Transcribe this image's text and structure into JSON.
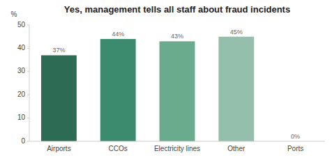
{
  "chart_data": {
    "type": "bar",
    "title": "Yes, management tells all staff about fraud incidents",
    "y_label": "%",
    "categories": [
      "Airports",
      "CCOs",
      "Electricity lines",
      "Other",
      "Ports"
    ],
    "values": [
      37,
      44,
      43,
      45,
      0
    ],
    "value_labels": [
      "37%",
      "44%",
      "43%",
      "45%",
      "0%"
    ],
    "colors": [
      "#2d6b55",
      "#3d8b6e",
      "#6aab8e",
      "#94bfad",
      "#b8d8cc"
    ],
    "ylim": [
      0,
      50
    ],
    "yticks": [
      0,
      10,
      20,
      30,
      40,
      50
    ],
    "grid": false,
    "data_labels": true
  }
}
